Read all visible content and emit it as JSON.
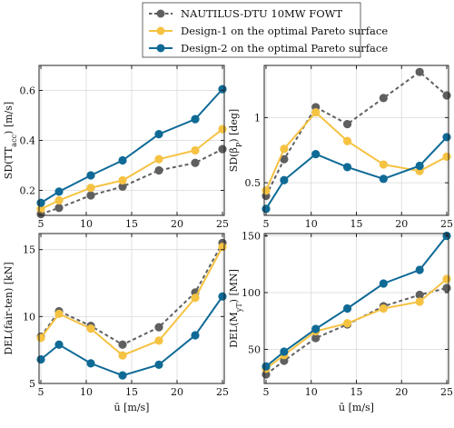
{
  "legend": {
    "items": [
      {
        "label": "NAUTILUS-DTU 10MW FOWT",
        "color": "#5f5f5f",
        "dashed": true
      },
      {
        "label": "Design-1 on the optimal Pareto surface",
        "color": "#f5c242",
        "dashed": false
      },
      {
        "label": "Design-2 on the optimal Pareto surface",
        "color": "#0f6a96",
        "dashed": false
      }
    ],
    "placement": "top-center"
  },
  "chart_data": [
    {
      "type": "line",
      "ylabel": "SD(TT_acc) [m/s]",
      "xlabel": "",
      "x": [
        5,
        7,
        10.5,
        14,
        18,
        22,
        25
      ],
      "xlim": [
        4.8,
        25.2
      ],
      "ylim": [
        0.1,
        0.7
      ],
      "xticks": [
        5,
        10,
        15,
        20,
        25
      ],
      "yticks": [
        0.2,
        0.4,
        0.6
      ],
      "ytick_labels": [
        "0.2",
        "0.4",
        "0.6"
      ],
      "grid": true,
      "series": [
        {
          "name": "NAUTILUS-DTU 10MW FOWT",
          "values": [
            0.105,
            0.13,
            0.18,
            0.215,
            0.28,
            0.31,
            0.365
          ]
        },
        {
          "name": "Design-1 on the optimal Pareto surface",
          "values": [
            0.125,
            0.16,
            0.21,
            0.24,
            0.325,
            0.36,
            0.445
          ]
        },
        {
          "name": "Design-2 on the optimal Pareto surface",
          "values": [
            0.15,
            0.195,
            0.26,
            0.32,
            0.425,
            0.485,
            0.605
          ]
        }
      ]
    },
    {
      "type": "line",
      "ylabel": "SD(β_P) [deg]",
      "xlabel": "",
      "x": [
        5,
        7,
        10.5,
        14,
        18,
        22,
        25
      ],
      "xlim": [
        4.8,
        25.2
      ],
      "ylim": [
        0.25,
        1.4
      ],
      "xticks": [
        5,
        10,
        15,
        20,
        25
      ],
      "yticks": [
        0.5,
        1
      ],
      "ytick_labels": [
        "0.5",
        "1"
      ],
      "grid": true,
      "series": [
        {
          "name": "NAUTILUS-DTU 10MW FOWT",
          "values": [
            0.4,
            0.68,
            1.08,
            0.95,
            1.15,
            1.35,
            1.17
          ]
        },
        {
          "name": "Design-1 on the optimal Pareto surface",
          "values": [
            0.44,
            0.76,
            1.04,
            0.82,
            0.64,
            0.59,
            0.7
          ]
        },
        {
          "name": "Design-2 on the optimal Pareto surface",
          "values": [
            0.3,
            0.52,
            0.72,
            0.62,
            0.53,
            0.63,
            0.85
          ]
        }
      ]
    },
    {
      "type": "line",
      "ylabel": "DEL(fair-ten) [kN]",
      "xlabel": "ū [m/s]",
      "x": [
        5,
        7,
        10.5,
        14,
        18,
        22,
        25
      ],
      "xlim": [
        4.8,
        25.2
      ],
      "ylim": [
        5,
        16.2
      ],
      "xticks": [
        5,
        10,
        15,
        20,
        25
      ],
      "yticks": [
        5,
        10,
        15
      ],
      "ytick_labels": [
        "5",
        "10",
        "15"
      ],
      "grid": true,
      "series": [
        {
          "name": "NAUTILUS-DTU 10MW FOWT",
          "values": [
            8.5,
            10.4,
            9.3,
            7.9,
            9.2,
            11.8,
            15.5
          ]
        },
        {
          "name": "Design-1 on the optimal Pareto surface",
          "values": [
            8.4,
            10.2,
            9.1,
            7.1,
            8.2,
            11.4,
            15.2
          ]
        },
        {
          "name": "Design-2 on the optimal Pareto surface",
          "values": [
            6.8,
            7.9,
            6.5,
            5.6,
            6.4,
            8.6,
            11.5
          ]
        }
      ]
    },
    {
      "type": "line",
      "ylabel": "DEL(M_yT) [MN]",
      "xlabel": "ū [m/s]",
      "x": [
        5,
        7,
        10.5,
        14,
        18,
        22,
        25
      ],
      "xlim": [
        4.8,
        25.2
      ],
      "ylim": [
        20,
        152
      ],
      "xticks": [
        5,
        10,
        15,
        20,
        25
      ],
      "yticks": [
        50,
        100,
        150
      ],
      "ytick_labels": [
        "50",
        "100",
        "150"
      ],
      "grid": true,
      "series": [
        {
          "name": "NAUTILUS-DTU 10MW FOWT",
          "values": [
            28,
            40,
            60,
            72,
            88,
            98,
            104
          ]
        },
        {
          "name": "Design-1 on the optimal Pareto surface",
          "values": [
            33,
            45,
            66,
            73,
            86,
            92,
            112
          ]
        },
        {
          "name": "Design-2 on the optimal Pareto surface",
          "values": [
            35,
            48,
            68,
            86,
            108,
            120,
            150
          ]
        }
      ]
    }
  ]
}
